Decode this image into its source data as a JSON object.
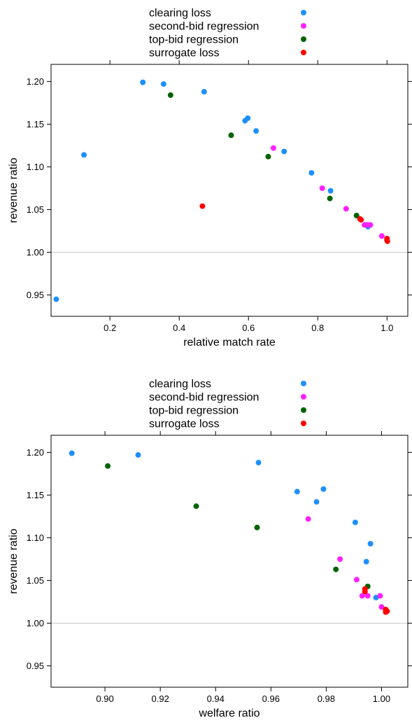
{
  "colors": {
    "clearing_loss": "#1f8fff",
    "second_bid_regression": "#ff20ff",
    "top_bid_regression": "#006400",
    "surrogate_loss": "#ff0000",
    "reference_line": "#c8c8c8"
  },
  "chart_data": [
    {
      "type": "scatter",
      "xlabel": "relative match rate",
      "ylabel": "revenue ratio",
      "xlim": [
        0.03,
        1.06
      ],
      "ylim": [
        0.925,
        1.22
      ],
      "xticks": [
        "0.2",
        "0.4",
        "0.6",
        "0.8",
        "1.0"
      ],
      "yticks": [
        "0.95",
        "1.00",
        "1.05",
        "1.10",
        "1.15",
        "1.20"
      ],
      "reference_line_y": 1.0,
      "legend": [
        "clearing loss",
        "second-bid regression",
        "top-bid regression",
        "surrogate loss"
      ],
      "series": [
        {
          "name": "clearing loss",
          "color_key": "clearing_loss",
          "points": [
            [
              0.045,
              0.945
            ],
            [
              0.125,
              1.114
            ],
            [
              0.295,
              1.199
            ],
            [
              0.355,
              1.197
            ],
            [
              0.472,
              1.188
            ],
            [
              0.59,
              1.154
            ],
            [
              0.598,
              1.157
            ],
            [
              0.622,
              1.142
            ],
            [
              0.703,
              1.118
            ],
            [
              0.782,
              1.093
            ],
            [
              0.837,
              1.072
            ],
            [
              0.945,
              1.03
            ]
          ]
        },
        {
          "name": "second-bid regression",
          "color_key": "second_bid_regression",
          "points": [
            [
              0.672,
              1.122
            ],
            [
              0.813,
              1.075
            ],
            [
              0.882,
              1.051
            ],
            [
              0.935,
              1.032
            ],
            [
              0.943,
              1.032
            ],
            [
              0.952,
              1.032
            ],
            [
              0.985,
              1.019
            ]
          ]
        },
        {
          "name": "top-bid regression",
          "color_key": "top_bid_regression",
          "points": [
            [
              0.375,
              1.184
            ],
            [
              0.55,
              1.137
            ],
            [
              0.657,
              1.112
            ],
            [
              0.835,
              1.063
            ],
            [
              0.912,
              1.043
            ]
          ]
        },
        {
          "name": "surrogate loss",
          "color_key": "surrogate_loss",
          "points": [
            [
              0.467,
              1.054
            ],
            [
              0.922,
              1.039
            ],
            [
              0.925,
              1.038
            ],
            [
              1.0,
              1.016
            ],
            [
              1.0,
              1.014
            ],
            [
              1.001,
              1.013
            ]
          ]
        }
      ]
    },
    {
      "type": "scatter",
      "xlabel": "welfare ratio",
      "ylabel": "revenue ratio",
      "xlim": [
        0.8805,
        1.0095
      ],
      "ylim": [
        0.925,
        1.22
      ],
      "xticks": [
        "0.90",
        "0.92",
        "0.94",
        "0.96",
        "0.98",
        "1.00"
      ],
      "yticks": [
        "0.95",
        "1.00",
        "1.05",
        "1.10",
        "1.15",
        "1.20"
      ],
      "reference_line_y": 1.0,
      "legend": [
        "clearing loss",
        "second-bid regression",
        "top-bid regression",
        "surrogate loss"
      ],
      "series": [
        {
          "name": "clearing loss",
          "color_key": "clearing_loss",
          "points": [
            [
              0.888,
              1.199
            ],
            [
              0.912,
              1.197
            ],
            [
              0.9555,
              1.188
            ],
            [
              0.9695,
              1.154
            ],
            [
              0.9765,
              1.142
            ],
            [
              0.979,
              1.157
            ],
            [
              0.9905,
              1.118
            ],
            [
              0.9945,
              1.072
            ],
            [
              0.996,
              1.093
            ],
            [
              0.998,
              1.03
            ]
          ]
        },
        {
          "name": "second-bid regression",
          "color_key": "second_bid_regression",
          "points": [
            [
              0.9735,
              1.122
            ],
            [
              0.985,
              1.075
            ],
            [
              0.991,
              1.051
            ],
            [
              0.993,
              1.032
            ],
            [
              0.995,
              1.032
            ],
            [
              0.9995,
              1.032
            ],
            [
              1.0,
              1.019
            ]
          ]
        },
        {
          "name": "top-bid regression",
          "color_key": "top_bid_regression",
          "points": [
            [
              0.901,
              1.184
            ],
            [
              0.933,
              1.137
            ],
            [
              0.955,
              1.112
            ],
            [
              0.9835,
              1.063
            ],
            [
              0.995,
              1.043
            ]
          ]
        },
        {
          "name": "surrogate loss",
          "color_key": "surrogate_loss",
          "points": [
            [
              0.994,
              1.04
            ],
            [
              0.994,
              1.037
            ],
            [
              1.0015,
              1.016
            ],
            [
              1.002,
              1.014
            ],
            [
              1.0015,
              1.013
            ]
          ]
        }
      ]
    }
  ]
}
